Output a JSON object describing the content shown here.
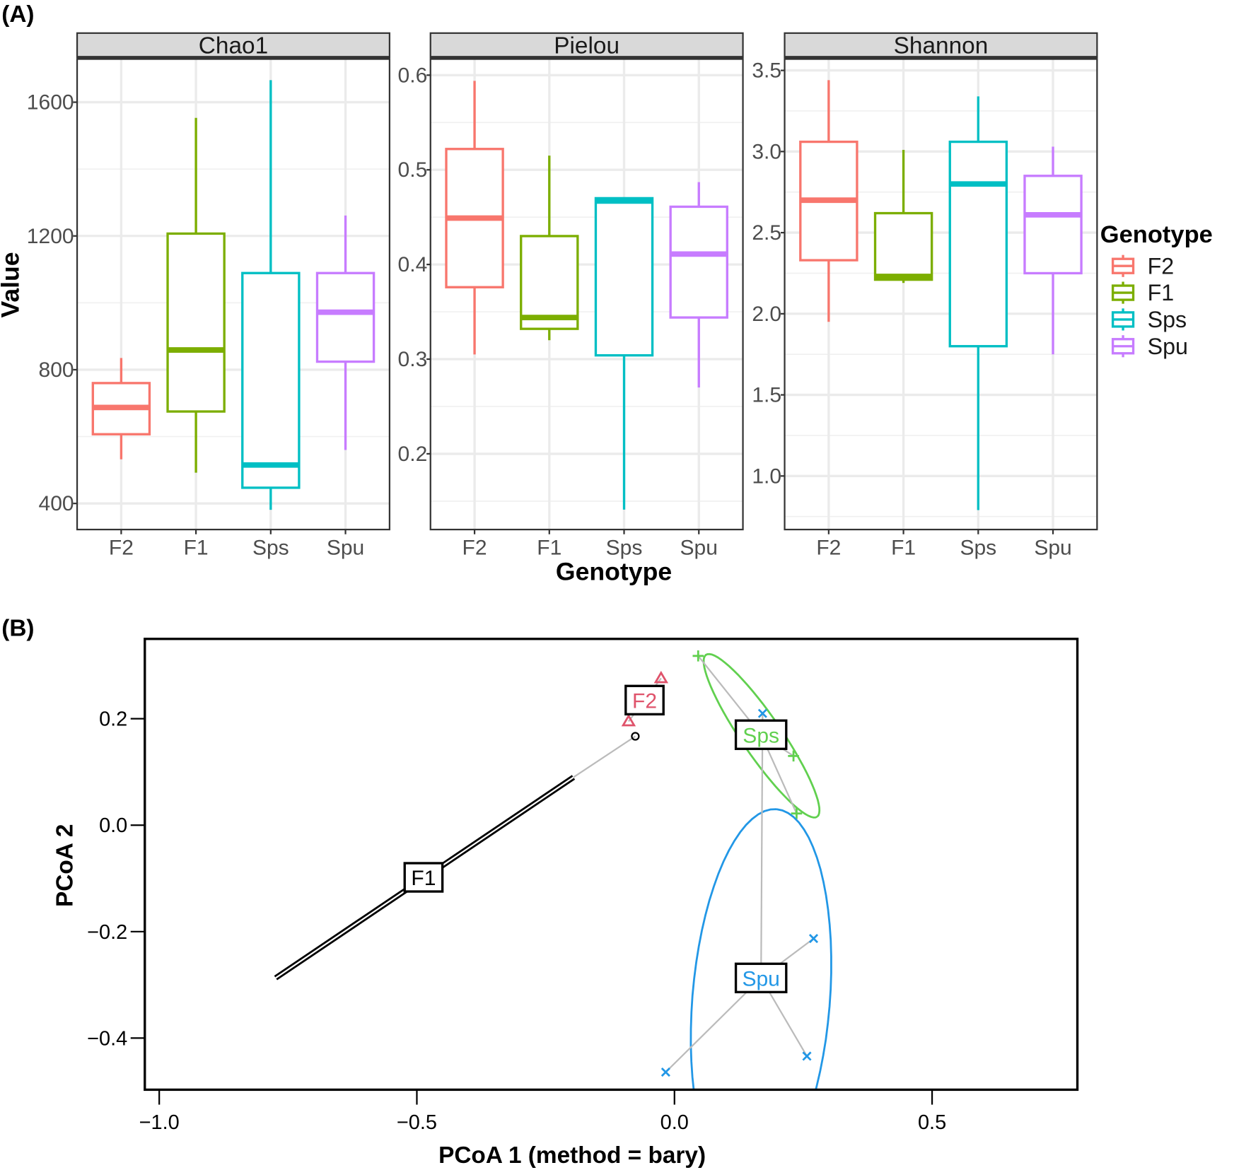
{
  "panel_labels": {
    "a": "(A)",
    "b": "(B)"
  },
  "chart_data": [
    {
      "type": "boxplot",
      "xlabel": "Genotype",
      "ylabel": "Value",
      "categories": [
        "F2",
        "F1",
        "Sps",
        "Spu"
      ],
      "colors": {
        "F2": "#F8766D",
        "F1": "#7CAE00",
        "Sps": "#00BFC4",
        "Spu": "#C77CFF"
      },
      "legend": {
        "title": "Genotype",
        "entries": [
          "F2",
          "F1",
          "Sps",
          "Spu"
        ],
        "placement": "right"
      },
      "facets": [
        {
          "title": "Chao1",
          "ylim": [
            322,
            1729
          ],
          "ticks": [
            400,
            800,
            1200,
            1600
          ],
          "tick_labels": [
            "400",
            "800",
            "1200",
            "1600"
          ],
          "boxes": [
            {
              "group": "F2",
              "min": 532,
              "q1": 607,
              "median": 687,
              "q3": 760,
              "max": 835
            },
            {
              "group": "F1",
              "min": 492,
              "q1": 675,
              "median": 859,
              "q3": 1207,
              "max": 1553
            },
            {
              "group": "Sps",
              "min": 381,
              "q1": 447,
              "median": 515,
              "q3": 1089,
              "max": 1666
            },
            {
              "group": "Spu",
              "min": 560,
              "q1": 824,
              "median": 972,
              "q3": 1089,
              "max": 1261
            }
          ]
        },
        {
          "title": "Pielou",
          "ylim": [
            0.12,
            0.617
          ],
          "ticks": [
            0.2,
            0.3,
            0.4,
            0.5,
            0.6
          ],
          "tick_labels": [
            "0.2",
            "0.3",
            "0.4",
            "0.5",
            "0.6"
          ],
          "boxes": [
            {
              "group": "F2",
              "min": 0.305,
              "q1": 0.376,
              "median": 0.449,
              "q3": 0.522,
              "max": 0.594
            },
            {
              "group": "F1",
              "min": 0.32,
              "q1": 0.332,
              "median": 0.344,
              "q3": 0.43,
              "max": 0.515
            },
            {
              "group": "Sps",
              "min": 0.141,
              "q1": 0.304,
              "median": 0.467,
              "q3": 0.47,
              "max": 0.471
            },
            {
              "group": "Spu",
              "min": 0.27,
              "q1": 0.344,
              "median": 0.411,
              "q3": 0.461,
              "max": 0.487
            }
          ]
        },
        {
          "title": "Shannon",
          "ylim": [
            0.67,
            3.57
          ],
          "ticks": [
            1.0,
            1.5,
            2.0,
            2.5,
            3.0,
            3.5
          ],
          "tick_labels": [
            "1.0",
            "1.5",
            "2.0",
            "2.5",
            "3.0",
            "3.5"
          ],
          "boxes": [
            {
              "group": "F2",
              "min": 1.95,
              "q1": 2.33,
              "median": 2.7,
              "q3": 3.06,
              "max": 3.44
            },
            {
              "group": "F1",
              "min": 2.19,
              "q1": 2.21,
              "median": 2.23,
              "q3": 2.62,
              "max": 3.01
            },
            {
              "group": "Sps",
              "min": 0.79,
              "q1": 1.8,
              "median": 2.8,
              "q3": 3.06,
              "max": 3.34
            },
            {
              "group": "Spu",
              "min": 1.75,
              "q1": 2.25,
              "median": 2.61,
              "q3": 2.85,
              "max": 3.03
            }
          ]
        }
      ]
    },
    {
      "type": "scatter",
      "title": "",
      "xlabel": "PCoA 1 (method = bary)",
      "ylabel": "PCoA 2",
      "xlim": [
        -1.028,
        0.782
      ],
      "ylim": [
        -0.497,
        0.35
      ],
      "xticks": [
        -1.0,
        -0.5,
        0.0,
        0.5
      ],
      "xtick_labels": [
        "−1.0",
        "−0.5",
        "0.0",
        "0.5"
      ],
      "yticks": [
        -0.4,
        -0.2,
        0.0,
        0.2
      ],
      "ytick_labels": [
        "−0.4",
        "−0.2",
        "0.0",
        "0.2"
      ],
      "groups": [
        {
          "name": "F1",
          "color": "#000000",
          "marker": "circle",
          "centroid": [
            -0.487,
            -0.098
          ],
          "points": [
            [
              -0.076,
              0.167
            ]
          ],
          "ellipse_segment": [
            [
              -0.774,
              -0.287
            ],
            [
              -0.196,
              0.09
            ]
          ]
        },
        {
          "name": "F2",
          "color": "#DF536B",
          "marker": "triangle",
          "centroid": [
            -0.058,
            0.235
          ],
          "points": [
            [
              -0.026,
              0.276
            ],
            [
              -0.089,
              0.195
            ]
          ]
        },
        {
          "name": "Sps",
          "color": "#61D04F",
          "marker": "plus",
          "centroid": [
            0.168,
            0.17
          ],
          "points": [
            [
              0.046,
              0.318
            ],
            [
              0.231,
              0.13
            ],
            [
              0.237,
              0.022
            ]
          ],
          "ellipse": {
            "center": [
              0.169,
              0.168
            ],
            "u": [
              0.108,
              -0.152
            ],
            "v": [
              0.031,
              0.022
            ]
          }
        },
        {
          "name": "Spu",
          "color": "#2297E6",
          "marker": "cross",
          "centroid": [
            0.168,
            -0.287
          ],
          "points": [
            [
              0.171,
              0.21
            ],
            [
              0.27,
              -0.213
            ],
            [
              0.257,
              -0.434
            ],
            [
              -0.017,
              -0.464
            ]
          ],
          "ellipse": {
            "center": [
              0.168,
              -0.33
            ],
            "u": [
              0.03,
              0.36
            ],
            "v": [
              0.133,
              -0.01
            ]
          }
        }
      ]
    }
  ]
}
